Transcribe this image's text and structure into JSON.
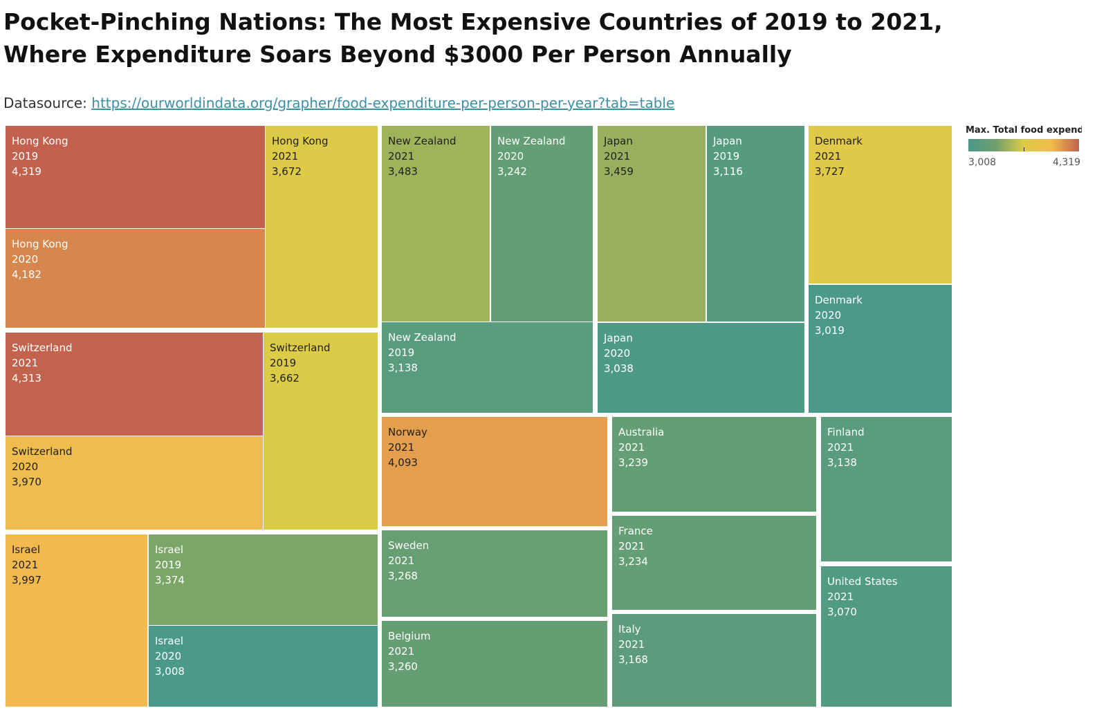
{
  "title": "Pocket-Pinching Nations: The Most Expensive Countries of 2019 to 2021, Where Expenditure Soars Beyond $3000 Per Person Annually",
  "subtitle": {
    "prefix": "Datasource: ",
    "link_text": "https://ourworldindata.org/grapher/food-expenditure-per-person-per-year?tab=table"
  },
  "legend": {
    "title": "Max. Total food expend..",
    "min_label": "3,008",
    "max_label": "4,319",
    "min_value": 3008,
    "max_value": 4319,
    "colors": [
      "#4a998a",
      "#6fa06c",
      "#dccb47",
      "#f2bb4e",
      "#c1614e"
    ]
  },
  "chart_data": {
    "type": "treemap",
    "title": "Pocket-Pinching Nations: The Most Expensive Countries of 2019 to 2021, Where Expenditure Soars Beyond $3000 Per Person Annually",
    "value_field": "Max. Total food expend..",
    "color_range": [
      3008,
      4319
    ],
    "cells": [
      {
        "country": "Hong Kong",
        "year": "2019",
        "label": "4,319",
        "value": 4319
      },
      {
        "country": "Hong Kong",
        "year": "2020",
        "label": "4,182",
        "value": 4182
      },
      {
        "country": "Hong Kong",
        "year": "2021",
        "label": "3,672",
        "value": 3672
      },
      {
        "country": "Switzerland",
        "year": "2021",
        "label": "4,313",
        "value": 4313
      },
      {
        "country": "Switzerland",
        "year": "2020",
        "label": "3,970",
        "value": 3970
      },
      {
        "country": "Switzerland",
        "year": "2019",
        "label": "3,662",
        "value": 3662
      },
      {
        "country": "Israel",
        "year": "2021",
        "label": "3,997",
        "value": 3997
      },
      {
        "country": "Israel",
        "year": "2019",
        "label": "3,374",
        "value": 3374
      },
      {
        "country": "Israel",
        "year": "2020",
        "label": "3,008",
        "value": 3008
      },
      {
        "country": "New Zealand",
        "year": "2021",
        "label": "3,483",
        "value": 3483
      },
      {
        "country": "New Zealand",
        "year": "2020",
        "label": "3,242",
        "value": 3242
      },
      {
        "country": "New Zealand",
        "year": "2019",
        "label": "3,138",
        "value": 3138
      },
      {
        "country": "Japan",
        "year": "2021",
        "label": "3,459",
        "value": 3459
      },
      {
        "country": "Japan",
        "year": "2019",
        "label": "3,116",
        "value": 3116
      },
      {
        "country": "Japan",
        "year": "2020",
        "label": "3,038",
        "value": 3038
      },
      {
        "country": "Denmark",
        "year": "2021",
        "label": "3,727",
        "value": 3727
      },
      {
        "country": "Denmark",
        "year": "2020",
        "label": "3,019",
        "value": 3019
      },
      {
        "country": "Norway",
        "year": "2021",
        "label": "4,093",
        "value": 4093
      },
      {
        "country": "Sweden",
        "year": "2021",
        "label": "3,268",
        "value": 3268
      },
      {
        "country": "Belgium",
        "year": "2021",
        "label": "3,260",
        "value": 3260
      },
      {
        "country": "Australia",
        "year": "2021",
        "label": "3,239",
        "value": 3239
      },
      {
        "country": "France",
        "year": "2021",
        "label": "3,234",
        "value": 3234
      },
      {
        "country": "Italy",
        "year": "2021",
        "label": "3,168",
        "value": 3168
      },
      {
        "country": "Finland",
        "year": "2021",
        "label": "3,138",
        "value": 3138
      },
      {
        "country": "United States",
        "year": "2021",
        "label": "3,070",
        "value": 3070
      }
    ]
  }
}
